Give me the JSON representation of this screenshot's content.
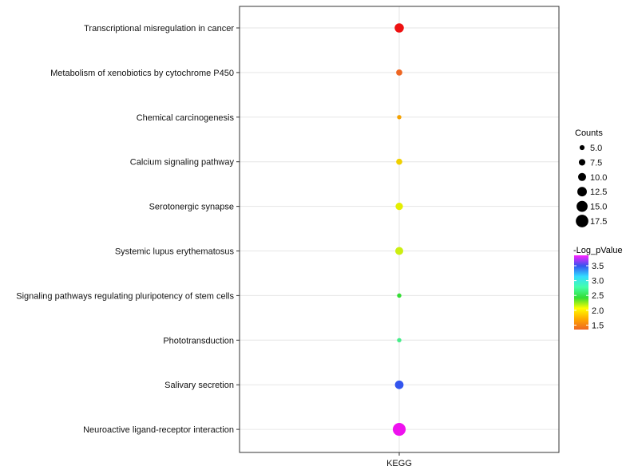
{
  "chart_data": {
    "type": "scatter",
    "title": "",
    "xlabel": "",
    "ylabel": "",
    "x_categories": [
      "KEGG"
    ],
    "grid": true,
    "points": [
      {
        "pathway": "Transcriptional misregulation in cancer",
        "x": "KEGG",
        "counts": 12,
        "neg_log_pvalue": 1.4,
        "color": "#ee1111"
      },
      {
        "pathway": "Metabolism of xenobiotics by cytochrome P450",
        "x": "KEGG",
        "counts": 7,
        "neg_log_pvalue": 1.55,
        "color": "#ee6622"
      },
      {
        "pathway": "Chemical carcinogenesis",
        "x": "KEGG",
        "counts": 4,
        "neg_log_pvalue": 1.75,
        "color": "#f5a200"
      },
      {
        "pathway": "Calcium signaling pathway",
        "x": "KEGG",
        "counts": 7,
        "neg_log_pvalue": 1.9,
        "color": "#f0d000"
      },
      {
        "pathway": "Serotonergic synapse",
        "x": "KEGG",
        "counts": 9,
        "neg_log_pvalue": 2.0,
        "color": "#e4ee00"
      },
      {
        "pathway": "Systemic lupus erythematosus",
        "x": "KEGG",
        "counts": 10,
        "neg_log_pvalue": 2.1,
        "color": "#ccee11"
      },
      {
        "pathway": "Signaling pathways regulating pluripotency of stem cells",
        "x": "KEGG",
        "counts": 4,
        "neg_log_pvalue": 2.3,
        "color": "#33dd33"
      },
      {
        "pathway": "Phototransduction",
        "x": "KEGG",
        "counts": 4,
        "neg_log_pvalue": 2.5,
        "color": "#44ee88"
      },
      {
        "pathway": "Salivary secretion",
        "x": "KEGG",
        "counts": 11,
        "neg_log_pvalue": 3.3,
        "color": "#3355ee"
      },
      {
        "pathway": "Neuroactive ligand-receptor interaction",
        "x": "KEGG",
        "counts": 18,
        "neg_log_pvalue": 3.8,
        "color": "#ee11ee"
      }
    ],
    "size_legend": {
      "title": "Counts",
      "values": [
        5.0,
        7.5,
        10.0,
        12.5,
        15.0,
        17.5
      ],
      "labels": [
        "5.0",
        "7.5",
        "10.0",
        "12.5",
        "15.0",
        "17.5"
      ]
    },
    "color_legend": {
      "title": "-Log_pValue",
      "ticks": [
        3.5,
        3.0,
        2.5,
        2.0,
        1.5
      ],
      "labels": [
        "3.5",
        "3.0",
        "2.5",
        "2.0",
        "1.5"
      ],
      "range": [
        1.35,
        3.85
      ],
      "gradient_stops": [
        "#ee6622",
        "#ffaa00",
        "#ffff00",
        "#33dd33",
        "#44ffaa",
        "#33ddff",
        "#3355ee",
        "#ff22ff"
      ]
    }
  }
}
